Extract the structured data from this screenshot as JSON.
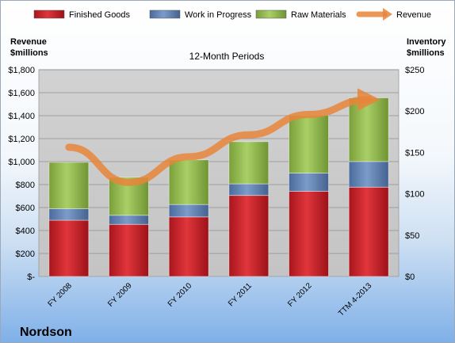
{
  "chart_data": {
    "type": "bar",
    "stacked": true,
    "title": "12-Month Periods",
    "company": "Nordson",
    "categories": [
      "FY 2008",
      "FY 2009",
      "FY 2010",
      "FY 2011",
      "FY 2012",
      "TTM 4-2013"
    ],
    "left_axis": {
      "label_line1": "Revenue",
      "label_line2": "$millions",
      "ylim": [
        0,
        1800
      ],
      "ticks": [
        "$-",
        "$200",
        "$400",
        "$600",
        "$800",
        "$1,000",
        "$1,200",
        "$1,400",
        "$1,600",
        "$1,800"
      ]
    },
    "right_axis": {
      "label_line1": "Inventory",
      "label_line2": "$millions",
      "ylim": [
        0,
        250
      ],
      "ticks": [
        "$0",
        "$50",
        "$100",
        "$150",
        "$200",
        "$250"
      ]
    },
    "series": [
      {
        "name": "Finished Goods",
        "axis": "right",
        "kind": "bar",
        "color": "#c0272d",
        "values": [
          68,
          63,
          72,
          98,
          103,
          108
        ]
      },
      {
        "name": "Work in Progress",
        "axis": "right",
        "kind": "bar",
        "color": "#5b7db0",
        "values": [
          14,
          11,
          15,
          14,
          22,
          31
        ]
      },
      {
        "name": "Raw Materials",
        "axis": "right",
        "kind": "bar",
        "color": "#8cb34a",
        "values": [
          56,
          46,
          54,
          51,
          70,
          77
        ]
      },
      {
        "name": "Revenue",
        "axis": "left",
        "kind": "line",
        "color": "#e8853b",
        "values": [
          1125,
          819,
          1042,
          1233,
          1410,
          1540
        ]
      }
    ],
    "legend_position": "top",
    "grid": true
  }
}
